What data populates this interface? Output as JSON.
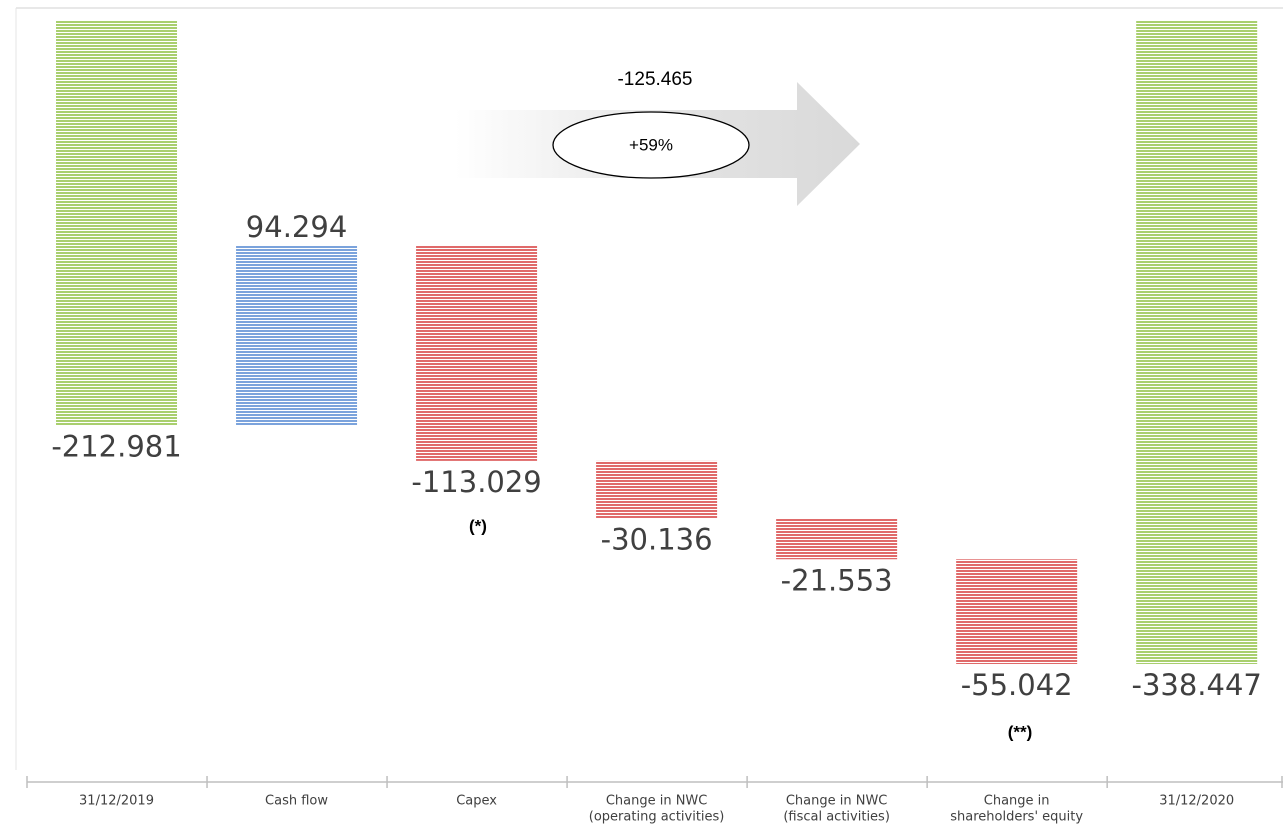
{
  "chart_data": {
    "type": "waterfall",
    "categories": [
      [
        "31/12/2019"
      ],
      [
        "Cash flow"
      ],
      [
        "Capex"
      ],
      [
        "Change in NWC",
        "(operating activities)"
      ],
      [
        "Change in NWC",
        "(fiscal activities)"
      ],
      [
        "Change in",
        "shareholders' equity"
      ],
      [
        "31/12/2020"
      ]
    ],
    "values": [
      -212.981,
      94.294,
      -113.029,
      -30.136,
      -21.553,
      -55.042,
      -338.447
    ],
    "colors": [
      "#a9cf6e",
      "#7ba3dc",
      "#e06a6a",
      "#e06a6a",
      "#e06a6a",
      "#e06a6a",
      "#a9cf6e"
    ],
    "annotations": {
      "total_change": -125.465,
      "percent_change": "+59%",
      "capex_note": "(*)",
      "equity_note": "(**)"
    }
  }
}
